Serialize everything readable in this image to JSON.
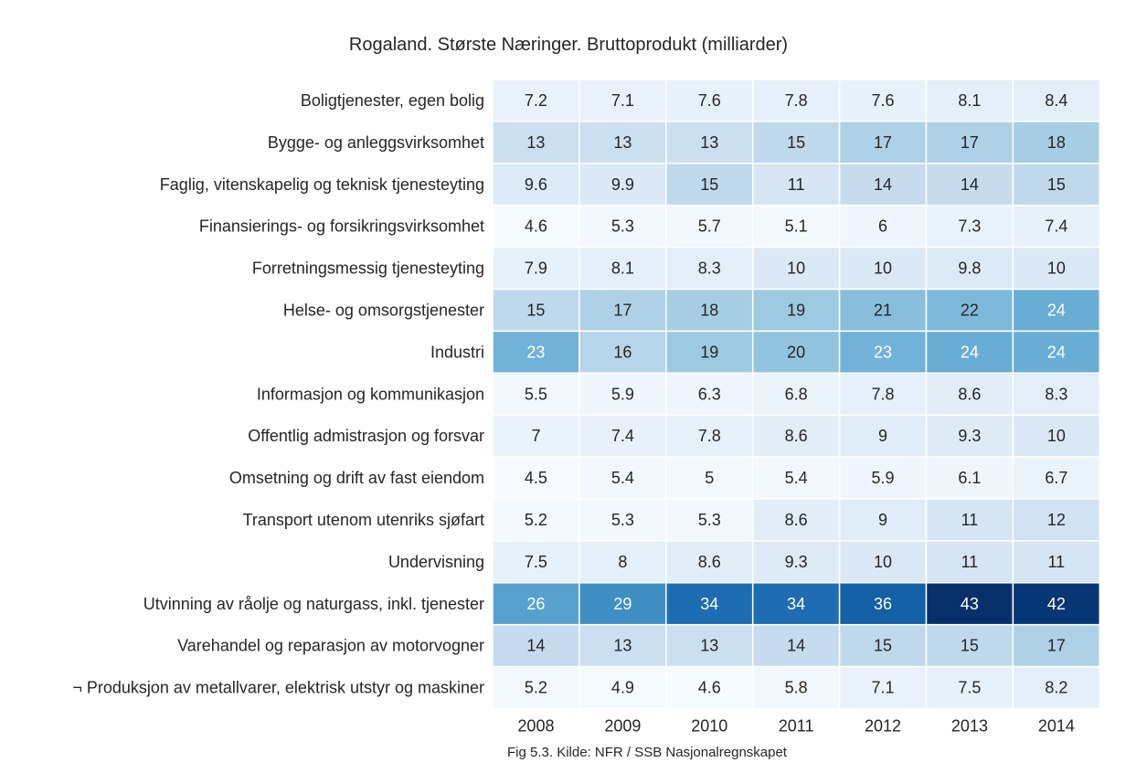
{
  "chart_data": {
    "type": "heatmap",
    "title": "Rogaland. Største Næringer. Bruttoprodukt (milliarder)",
    "caption": "Fig 5.3. Kilde: NFR / SSB Nasjonalregnskapet",
    "columns": [
      "2008",
      "2009",
      "2010",
      "2011",
      "2012",
      "2013",
      "2014"
    ],
    "rows": [
      "Boligtjenester, egen bolig",
      "Bygge- og anleggsvirksomhet",
      "Faglig, vitenskapelig og teknisk tjenesteyting",
      "Finansierings- og forsikringsvirksomhet",
      "Forretningsmessig tjenesteyting",
      "Helse- og omsorgstjenester",
      "Industri",
      "Informasjon og kommunikasjon",
      "Offentlig admistrasjon og forsvar",
      "Omsetning og drift av fast eiendom",
      "Transport utenom utenriks sjøfart",
      "Undervisning",
      "Utvinning av råolje og naturgass, inkl. tjenester",
      "Varehandel og reparasjon av motorvogner",
      "¬ Produksjon av metallvarer, elektrisk utstyr og maskiner"
    ],
    "values": [
      [
        7.2,
        7.1,
        7.6,
        7.8,
        7.6,
        8.1,
        8.4
      ],
      [
        13,
        13,
        13,
        15,
        17,
        17,
        18
      ],
      [
        9.6,
        9.9,
        15,
        11,
        14,
        14,
        15
      ],
      [
        4.6,
        5.3,
        5.7,
        5.1,
        6,
        7.3,
        7.4
      ],
      [
        7.9,
        8.1,
        8.3,
        10,
        10,
        9.8,
        10
      ],
      [
        15,
        17,
        18,
        19,
        21,
        22,
        24
      ],
      [
        23,
        16,
        19,
        20,
        23,
        24,
        24
      ],
      [
        5.5,
        5.9,
        6.3,
        6.8,
        7.8,
        8.6,
        8.3
      ],
      [
        7,
        7.4,
        7.8,
        8.6,
        9,
        9.3,
        10
      ],
      [
        4.5,
        5.4,
        5,
        5.4,
        5.9,
        6.1,
        6.7
      ],
      [
        5.2,
        5.3,
        5.3,
        8.6,
        9,
        11,
        12
      ],
      [
        7.5,
        8,
        8.6,
        9.3,
        10,
        11,
        11
      ],
      [
        26,
        29,
        34,
        34,
        36,
        43,
        42
      ],
      [
        14,
        13,
        13,
        14,
        15,
        15,
        17
      ],
      [
        5.2,
        4.9,
        4.6,
        5.8,
        7.1,
        7.5,
        8.2
      ]
    ],
    "colormap": "Blues",
    "vmin": 4.5,
    "vmax": 43,
    "colorbar": false,
    "cell_border_color": "#ffffff"
  }
}
